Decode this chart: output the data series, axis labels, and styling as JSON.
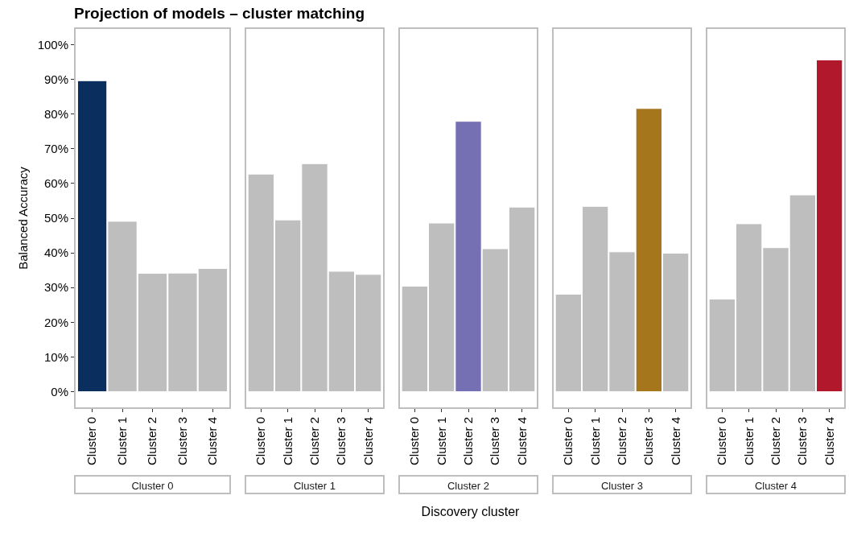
{
  "chart_data": [
    {
      "type": "bar",
      "title": "Cluster 0",
      "annotations": [
        "Projection of models – cluster matching"
      ],
      "ylabel": "Balanced Accuracy",
      "categories": [
        "Cluster 0",
        "Cluster 1",
        "Cluster 2",
        "Cluster 3",
        "Cluster 4"
      ],
      "values": [
        89.6,
        49.1,
        34.1,
        34.2,
        35.5
      ],
      "colors": [
        "#0a2f5e",
        "#bebebe",
        "#bebebe",
        "#bebebe",
        "#bebebe"
      ],
      "ylim": [
        -4.5,
        104.5
      ],
      "yticks": [
        {
          "value": 0,
          "label": "0%"
        },
        {
          "value": 10,
          "label": "10%"
        },
        {
          "value": 20,
          "label": "20%"
        },
        {
          "value": 30,
          "label": "30%"
        },
        {
          "value": 40,
          "label": "40%"
        },
        {
          "value": 50,
          "label": "50%"
        },
        {
          "value": 60,
          "label": "60%"
        },
        {
          "value": 70,
          "label": "70%"
        },
        {
          "value": 80,
          "label": "80%"
        },
        {
          "value": 90,
          "label": "90%"
        },
        {
          "value": 100,
          "label": "100%"
        }
      ]
    },
    {
      "type": "bar",
      "title": "Cluster 1",
      "categories": [
        "Cluster 0",
        "Cluster 1",
        "Cluster 2",
        "Cluster 3",
        "Cluster 4"
      ],
      "values": [
        62.7,
        49.5,
        65.7,
        34.7,
        33.8
      ],
      "colors": [
        "#bebebe",
        "#bebebe",
        "#bebebe",
        "#bebebe",
        "#bebebe"
      ],
      "ylim": [
        -4.5,
        104.5
      ],
      "tick_labels": "x"
    },
    {
      "type": "bar",
      "title": "Cluster 2",
      "xlabel": "Discovery cluster",
      "categories": [
        "Cluster 0",
        "Cluster 1",
        "Cluster 2",
        "Cluster 3",
        "Cluster 4"
      ],
      "values": [
        30.4,
        48.6,
        77.9,
        41.2,
        53.2
      ],
      "colors": [
        "#bebebe",
        "#bebebe",
        "#7570b3",
        "#bebebe",
        "#bebebe"
      ],
      "ylim": [
        -4.5,
        104.5
      ],
      "tick_labels": "x"
    },
    {
      "type": "bar",
      "title": "Cluster 3",
      "categories": [
        "Cluster 0",
        "Cluster 1",
        "Cluster 2",
        "Cluster 3",
        "Cluster 4"
      ],
      "values": [
        28.1,
        53.4,
        40.3,
        81.6,
        39.9
      ],
      "colors": [
        "#bebebe",
        "#bebebe",
        "#bebebe",
        "#a6761d",
        "#bebebe"
      ],
      "ylim": [
        -4.5,
        104.5
      ],
      "tick_labels": "x"
    },
    {
      "type": "bar",
      "title": "Cluster 4",
      "categories": [
        "Cluster 0",
        "Cluster 1",
        "Cluster 2",
        "Cluster 3",
        "Cluster 4"
      ],
      "values": [
        26.7,
        48.4,
        41.5,
        56.7,
        95.6
      ],
      "colors": [
        "#bebebe",
        "#bebebe",
        "#bebebe",
        "#bebebe",
        "#b2182b"
      ],
      "ylim": [
        -4.5,
        104.5
      ],
      "tick_labels": "x"
    }
  ]
}
